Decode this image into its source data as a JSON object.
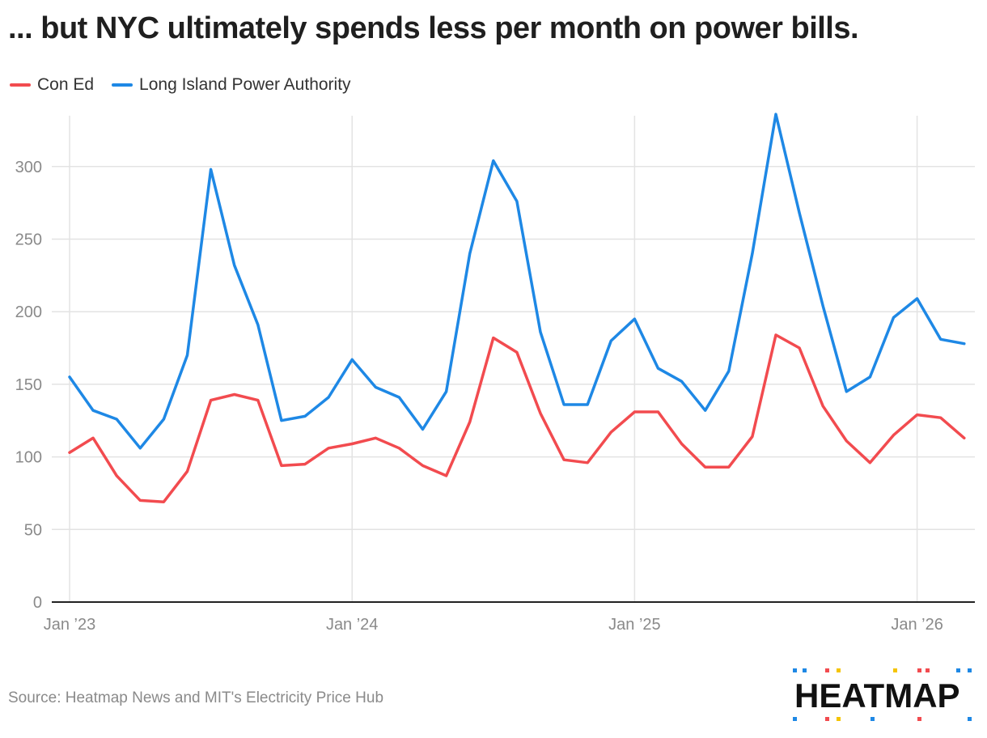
{
  "title": "... but NYC ultimately spends less per month on power bills.",
  "source": "Source: Heatmap News and MIT's Electricity Price Hub",
  "logo": "HEATMAP",
  "colors": {
    "con_ed": "#f24b4f",
    "lipa": "#1e88e5",
    "grid": "#e3e3e3",
    "axis": "#222222",
    "tick": "#8a8a8a"
  },
  "chart_data": {
    "type": "line",
    "title": "... but NYC ultimately spends less per month on power bills.",
    "xlabel": "",
    "ylabel": "",
    "ylim": [
      0,
      335
    ],
    "yticks": [
      0,
      50,
      100,
      150,
      200,
      250,
      300
    ],
    "xticks": [
      {
        "index": 0,
        "label": "Jan ’23"
      },
      {
        "index": 12,
        "label": "Jan ’24"
      },
      {
        "index": 24,
        "label": "Jan ’25"
      },
      {
        "index": 36,
        "label": "Jan ’26"
      }
    ],
    "x": [
      "2023-01",
      "2023-02",
      "2023-03",
      "2023-04",
      "2023-05",
      "2023-06",
      "2023-07",
      "2023-08",
      "2023-09",
      "2023-10",
      "2023-11",
      "2023-12",
      "2024-01",
      "2024-02",
      "2024-03",
      "2024-04",
      "2024-05",
      "2024-06",
      "2024-07",
      "2024-08",
      "2024-09",
      "2024-10",
      "2024-11",
      "2024-12",
      "2025-01",
      "2025-02",
      "2025-03",
      "2025-04",
      "2025-05",
      "2025-06",
      "2025-07",
      "2025-08",
      "2025-09",
      "2025-10",
      "2025-11",
      "2025-12",
      "2026-01",
      "2026-02",
      "2026-03"
    ],
    "legend_position": "top-left",
    "series": [
      {
        "name": "Con Ed",
        "color": "#f24b4f",
        "values": [
          103,
          113,
          87,
          70,
          69,
          90,
          139,
          143,
          139,
          94,
          95,
          106,
          109,
          113,
          106,
          94,
          87,
          124,
          182,
          172,
          130,
          98,
          96,
          117,
          131,
          131,
          109,
          93,
          93,
          114,
          184,
          175,
          135,
          111,
          96,
          115,
          129,
          127,
          113
        ]
      },
      {
        "name": "Long Island Power Authority",
        "color": "#1e88e5",
        "values": [
          155,
          132,
          126,
          106,
          126,
          170,
          298,
          232,
          191,
          125,
          128,
          141,
          167,
          148,
          141,
          119,
          145,
          240,
          304,
          276,
          186,
          136,
          136,
          180,
          195,
          161,
          152,
          132,
          159,
          240,
          336,
          268,
          204,
          145,
          155,
          196,
          209,
          181,
          178
        ]
      }
    ]
  }
}
